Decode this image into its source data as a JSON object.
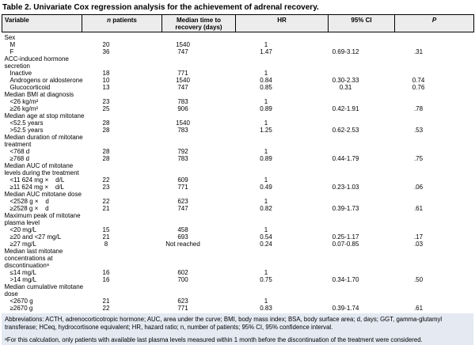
{
  "title": "Table 2. Univariate Cox regression analysis for the achievement of adrenal recovery.",
  "table": {
    "header": {
      "variable": "Variable",
      "n_patients": "n patients",
      "median_time": "Median time to\nrecovery (days)",
      "hr": "HR",
      "ci": "95% CI",
      "p": "P"
    },
    "rows": [
      {
        "type": "group",
        "label": "Sex"
      },
      {
        "type": "data",
        "label": "M",
        "n": "20",
        "median": "1540",
        "hr": "1",
        "ci": "",
        "p": ""
      },
      {
        "type": "data",
        "label": "F",
        "n": "36",
        "median": "747",
        "hr": "1.47",
        "ci": "0.69-3.12",
        "p": ".31"
      },
      {
        "type": "group",
        "label": "ACC-induced hormone\nsecretion"
      },
      {
        "type": "data",
        "label": "Inactive",
        "n": "18",
        "median": "771",
        "hr": "1",
        "ci": "",
        "p": ""
      },
      {
        "type": "data",
        "label": "Androgens or aldosterone",
        "n": "10",
        "median": "1540",
        "hr": "0.84",
        "ci": "0.30-2.33",
        "p": "0.74"
      },
      {
        "type": "data",
        "label": "Glucocorticoid",
        "n": "13",
        "median": "747",
        "hr": "0.85",
        "ci": "0.31",
        "p": "0.76"
      },
      {
        "type": "group",
        "label": "Median BMI at diagnosis"
      },
      {
        "type": "data",
        "label": "<26 kg/m²",
        "n": "23",
        "median": "783",
        "hr": "1",
        "ci": "",
        "p": ""
      },
      {
        "type": "data",
        "label": "≥26 kg/m²",
        "n": "25",
        "median": "906",
        "hr": "0.89",
        "ci": "0.42-1.91",
        "p": ".78"
      },
      {
        "type": "group",
        "label": "Median age at stop mitotane"
      },
      {
        "type": "data",
        "label": "<52.5 years",
        "n": "28",
        "median": "1540",
        "hr": "1",
        "ci": "",
        "p": ""
      },
      {
        "type": "data",
        "label": ">52.5 years",
        "n": "28",
        "median": "783",
        "hr": "1.25",
        "ci": "0.62-2.53",
        "p": ".53"
      },
      {
        "type": "group",
        "label": "Median duration of mitotane\ntreatment"
      },
      {
        "type": "data",
        "label": "<768 d",
        "n": "28",
        "median": "792",
        "hr": "1",
        "ci": "",
        "p": ""
      },
      {
        "type": "data",
        "label": "≥768 d",
        "n": "28",
        "median": "783",
        "hr": "0.89",
        "ci": "0.44-1.79",
        "p": ".75"
      },
      {
        "type": "group",
        "label": "Median AUC of mitotane\nlevels during the treatment"
      },
      {
        "type": "data",
        "label": "<11 624 mg ×    d/L",
        "n": "22",
        "median": "609",
        "hr": "1",
        "ci": "",
        "p": ""
      },
      {
        "type": "data",
        "label": "≥11 624 mg ×    d/L",
        "n": "23",
        "median": "771",
        "hr": "0.49",
        "ci": "0.23-1.03",
        "p": ".06"
      },
      {
        "type": "group",
        "label": "Median AUC mitotane dose"
      },
      {
        "type": "data",
        "label": "<2528 g ×    d",
        "n": "22",
        "median": "623",
        "hr": "1",
        "ci": "",
        "p": ""
      },
      {
        "type": "data",
        "label": "≥2528 g ×    d",
        "n": "21",
        "median": "747",
        "hr": "0.82",
        "ci": "0.39-1.73",
        "p": ".61"
      },
      {
        "type": "group",
        "label": "Maximum peak of mitotane\nplasma level"
      },
      {
        "type": "data",
        "label": "<20 mg/L",
        "n": "15",
        "median": "458",
        "hr": "1",
        "ci": "",
        "p": ""
      },
      {
        "type": "data",
        "label": "≥20 and <27 mg/L",
        "n": "21",
        "median": "693",
        "hr": "0.54",
        "ci": "0.25-1.17",
        "p": ".17"
      },
      {
        "type": "data",
        "label": "≥27 mg/L",
        "n": "8",
        "median": "Not reached",
        "hr": "0.24",
        "ci": "0.07-0.85",
        "p": ".03"
      },
      {
        "type": "group",
        "label": "Median last mitotane\nconcentrations at\ndiscontinuationᵃ"
      },
      {
        "type": "data",
        "label": "≤14 mg/L",
        "n": "16",
        "median": "602",
        "hr": "1",
        "ci": "",
        "p": ""
      },
      {
        "type": "data",
        "label": ">14 mg/L",
        "n": "16",
        "median": "700",
        "hr": "0.75",
        "ci": "0.34-1.70",
        "p": ".50"
      },
      {
        "type": "group",
        "label": "Median cumulative mitotane\ndose"
      },
      {
        "type": "data",
        "label": "<2670 g",
        "n": "21",
        "median": "623",
        "hr": "1",
        "ci": "",
        "p": ""
      },
      {
        "type": "data",
        "label": "≥2670 g",
        "n": "22",
        "median": "771",
        "hr": "0.83",
        "ci": "0.39-1.74",
        "p": ".61"
      }
    ]
  },
  "footer": {
    "abbreviations": "Abbreviations: ACTH, adrenocorticotropic hormone; AUC, area under the curve; BMI, body mass index; BSA, body surface area; d, days; GGT, gamma-glutamyl transferase; HCeq, hydrocortisone equivalent; HR, hazard ratio; n, number of patients; 95% CI, 95% confidence interval.",
    "footnote": "ᵃFor this calculation, only patients with available last plasma levels measured within 1 month before the discontinuation of the treatment were considered."
  },
  "colors": {
    "header_bg": "#ececec",
    "footer_bg": "#e4e9f2"
  }
}
